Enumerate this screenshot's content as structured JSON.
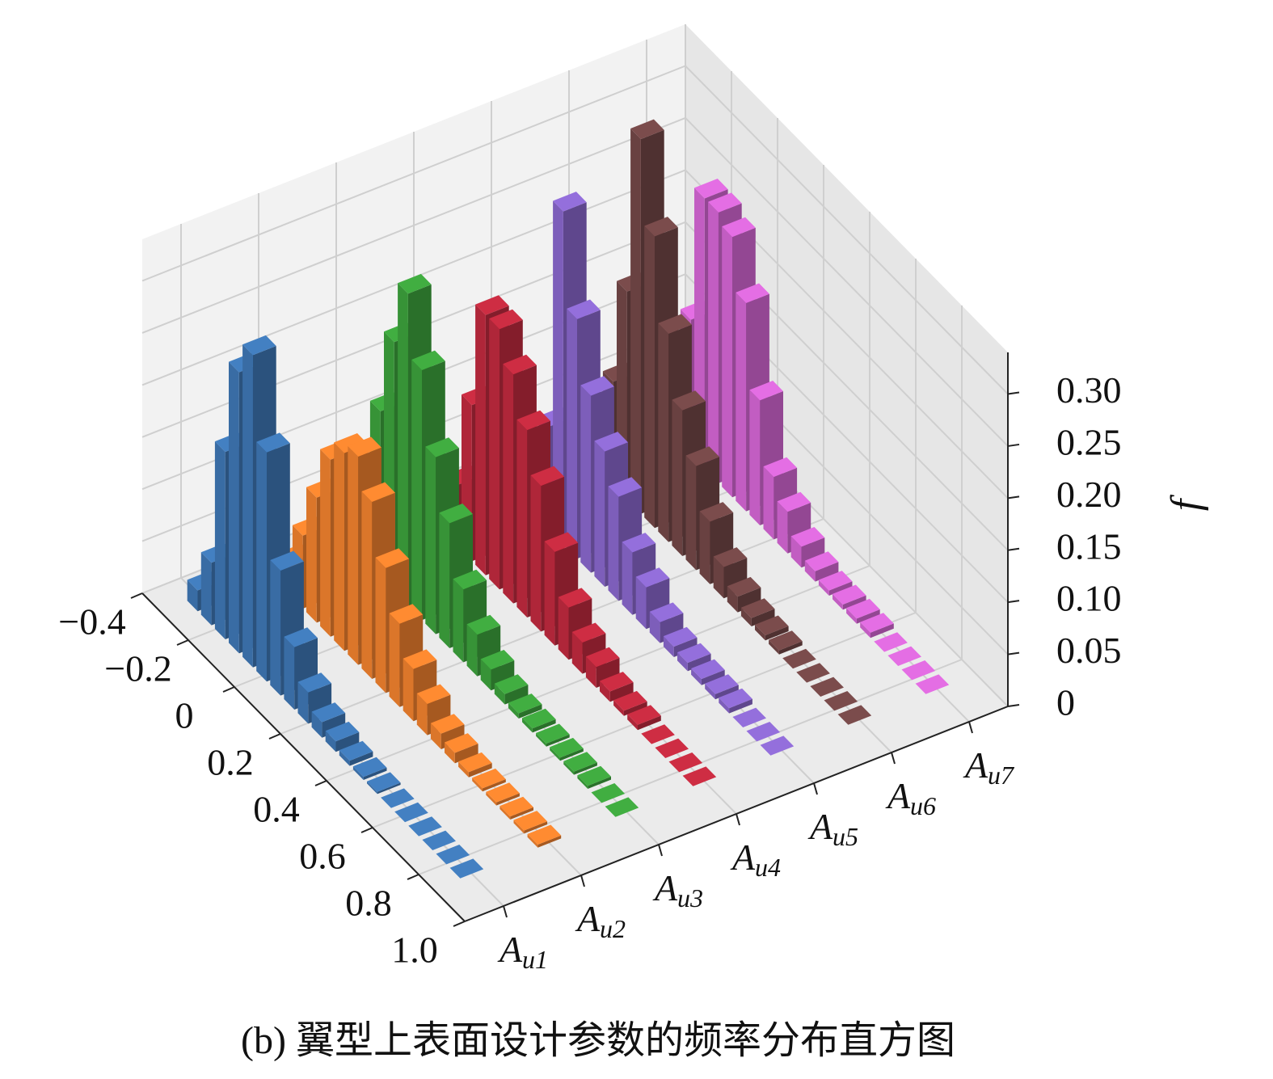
{
  "chart_data": {
    "type": "bar3d",
    "caption": "(b) 翼型上表面设计参数的频率分布直方图",
    "zlabel": "f",
    "categories": [
      "Au1",
      "Au2",
      "Au3",
      "Au4",
      "Au5",
      "Au6",
      "Au7"
    ],
    "x": [
      -0.3,
      -0.24,
      -0.18,
      -0.12,
      -0.06,
      0,
      0.06,
      0.12,
      0.18,
      0.24,
      0.3,
      0.36,
      0.42,
      0.48,
      0.54,
      0.6,
      0.66,
      0.72,
      0.78,
      0.84
    ],
    "series": [
      {
        "color": "#3c72ad",
        "values": [
          0.02,
          0.06,
          0.18,
          0.27,
          0.3,
          0.22,
          0.12,
          0.06,
          0.03,
          0.015,
          0.01,
          0.005,
          0.003,
          0.002,
          0,
          0,
          0,
          0,
          0,
          0
        ]
      },
      {
        "color": "#e67c2c",
        "values": [
          0.01,
          0.03,
          0.07,
          0.12,
          0.17,
          0.19,
          0.2,
          0.17,
          0.12,
          0.08,
          0.05,
          0.03,
          0.015,
          0.01,
          0.005,
          0.003,
          0.003,
          0.003,
          0.003,
          0.003
        ]
      },
      {
        "color": "#3a9b3a",
        "values": [
          0.03,
          0.08,
          0.16,
          0.24,
          0.3,
          0.24,
          0.17,
          0.12,
          0.07,
          0.04,
          0.02,
          0.01,
          0.005,
          0.004,
          0.003,
          0.003,
          0.003,
          0.003,
          0,
          0
        ]
      },
      {
        "color": "#b8283c",
        "values": [
          0.005,
          0.005,
          0.06,
          0.15,
          0.25,
          0.25,
          0.22,
          0.18,
          0.14,
          0.09,
          0.05,
          0.03,
          0.02,
          0.01,
          0.005,
          0.005,
          0,
          0,
          0,
          0
        ]
      },
      {
        "color": "#8463c4",
        "values": [
          0.005,
          0.01,
          0.05,
          0.1,
          0.32,
          0.23,
          0.17,
          0.13,
          0.1,
          0.06,
          0.04,
          0.02,
          0.01,
          0.008,
          0.006,
          0.005,
          0.005,
          0,
          0,
          0
        ]
      },
      {
        "color": "#6e4444",
        "values": [
          0.02,
          0.06,
          0.1,
          0.2,
          0.36,
          0.28,
          0.2,
          0.14,
          0.1,
          0.06,
          0.03,
          0.015,
          0.008,
          0.005,
          0.004,
          0,
          0,
          0,
          0,
          0
        ]
      },
      {
        "color": "#cc62cc",
        "values": [
          0.01,
          0.04,
          0.13,
          0.26,
          0.26,
          0.25,
          0.2,
          0.12,
          0.06,
          0.04,
          0.02,
          0.01,
          0.005,
          0.005,
          0.005,
          0.005,
          0,
          0,
          0,
          0
        ]
      }
    ],
    "xlim": [
      -0.4,
      1
    ],
    "xticks": [
      {
        "value": -0.4,
        "label": "−0.4"
      },
      {
        "value": -0.2,
        "label": "−0.2"
      },
      0,
      0.2,
      0.4,
      0.6,
      0.8,
      {
        "value": 1,
        "label": "1.0"
      }
    ],
    "zlim": [
      0,
      0.34
    ],
    "zticks": [
      0,
      0.05,
      {
        "value": 0.1,
        "label": "0.10"
      },
      0.15,
      {
        "value": 0.2,
        "label": "0.20"
      },
      0.25,
      {
        "value": 0.3,
        "label": "0.30"
      }
    ],
    "grid": true
  }
}
